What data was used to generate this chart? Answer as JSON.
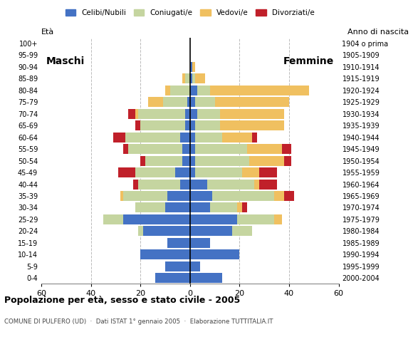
{
  "age_groups": [
    "0-4",
    "5-9",
    "10-14",
    "15-19",
    "20-24",
    "25-29",
    "30-34",
    "35-39",
    "40-44",
    "45-49",
    "50-54",
    "55-59",
    "60-64",
    "65-69",
    "70-74",
    "75-79",
    "80-84",
    "85-89",
    "90-94",
    "95-99",
    "100+"
  ],
  "birth_years": [
    "2000-2004",
    "1995-1999",
    "1990-1994",
    "1985-1989",
    "1980-1984",
    "1975-1979",
    "1970-1974",
    "1965-1969",
    "1960-1964",
    "1955-1959",
    "1950-1954",
    "1945-1949",
    "1940-1944",
    "1935-1939",
    "1930-1934",
    "1925-1929",
    "1920-1924",
    "1915-1919",
    "1910-1914",
    "1905-1909",
    "1904 o prima"
  ],
  "male_celibe": [
    14,
    10,
    20,
    9,
    19,
    27,
    10,
    9,
    4,
    6,
    3,
    3,
    4,
    2,
    2,
    1,
    0,
    0,
    0,
    0,
    0
  ],
  "male_coniugato": [
    0,
    0,
    0,
    0,
    2,
    8,
    12,
    18,
    17,
    16,
    15,
    22,
    22,
    18,
    19,
    10,
    8,
    2,
    0,
    0,
    0
  ],
  "male_vedovo": [
    0,
    0,
    0,
    0,
    0,
    0,
    0,
    1,
    0,
    0,
    0,
    0,
    0,
    0,
    1,
    6,
    2,
    1,
    0,
    0,
    0
  ],
  "male_divorziato": [
    0,
    0,
    0,
    0,
    0,
    0,
    0,
    0,
    2,
    7,
    2,
    2,
    5,
    2,
    3,
    0,
    0,
    0,
    0,
    0,
    0
  ],
  "female_celibe": [
    13,
    4,
    20,
    8,
    17,
    19,
    8,
    9,
    7,
    2,
    2,
    2,
    2,
    2,
    3,
    2,
    3,
    1,
    1,
    0,
    0
  ],
  "female_coniugato": [
    0,
    0,
    0,
    0,
    8,
    15,
    11,
    25,
    19,
    19,
    22,
    21,
    11,
    10,
    9,
    8,
    5,
    1,
    0,
    0,
    0
  ],
  "female_vedovo": [
    0,
    0,
    0,
    0,
    0,
    3,
    2,
    4,
    2,
    7,
    14,
    14,
    12,
    26,
    26,
    30,
    40,
    4,
    1,
    0,
    0
  ],
  "female_divorziato": [
    0,
    0,
    0,
    0,
    0,
    0,
    2,
    4,
    7,
    7,
    3,
    4,
    2,
    0,
    0,
    0,
    0,
    0,
    0,
    0,
    0
  ],
  "colors": {
    "celibe": "#4472c4",
    "coniugato": "#c5d5a0",
    "vedovo": "#f0c060",
    "divorziato": "#c0202a"
  },
  "title": "Popolazione per età, sesso e stato civile - 2005",
  "subtitle": "COMUNE DI PULFERO (UD)  ·  Dati ISTAT 1° gennaio 2005  ·  Elaborazione TUTTITALIA.IT",
  "label_maschi": "Maschi",
  "label_femmine": "Femmine",
  "ylabel_left": "Età",
  "ylabel_right": "Anno di nascita",
  "xlim": 60,
  "bg_color": "#ffffff",
  "grid_color": "#bbbbbb",
  "bar_height": 0.85,
  "legend_labels": [
    "Celibi/Nubili",
    "Coniugati/e",
    "Vedovi/e",
    "Divorziati/e"
  ]
}
